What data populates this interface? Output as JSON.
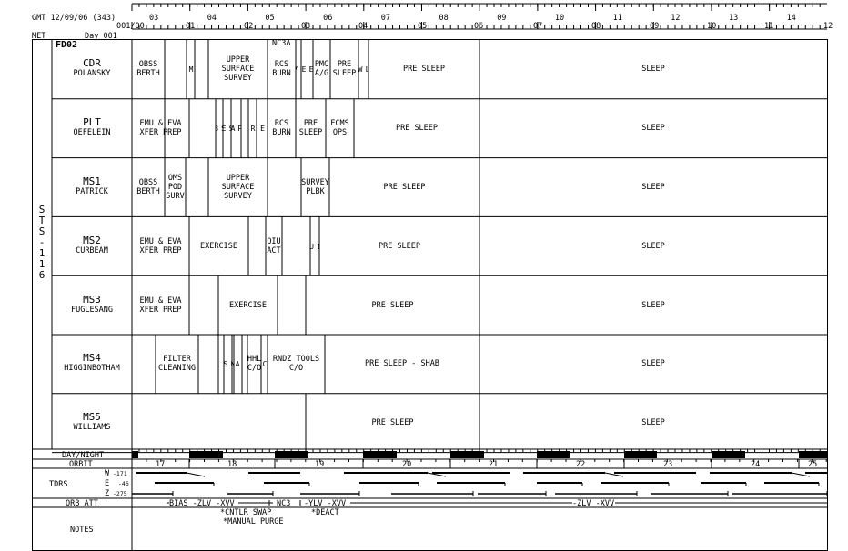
{
  "header": {
    "gmt_label": "GMT 12/09/06 (343)",
    "met_label": "MET",
    "day_label": "Day 001",
    "met_start": "001/00",
    "gmt_ticks": [
      "03",
      "04",
      "05",
      "06",
      "07",
      "08",
      "09",
      "10",
      "11",
      "12",
      "13",
      "14"
    ],
    "met_ticks": [
      "01",
      "02",
      "03",
      "04",
      "05",
      "06",
      "07",
      "08",
      "09",
      "10",
      "11",
      "12"
    ]
  },
  "flight_day": "FD02",
  "mission": "STS-116",
  "crew": [
    {
      "position": "CDR",
      "name": "POLANSKY",
      "activities": [
        {
          "label": "OBSS\nBERTH",
          "x0": 145,
          "x1": 181
        },
        {
          "label": "I\nM\nU",
          "x0": 205,
          "x1": 214,
          "vertical": true
        },
        {
          "label": "UPPER\nSURFACE\nSURVEY",
          "x0": 229,
          "x1": 294
        },
        {
          "label": "RCS\nBURN",
          "x0": 294,
          "x1": 325
        },
        {
          "label": "W\nM\nV\nR",
          "x0": 325,
          "x1": 331,
          "vertical": true
        },
        {
          "label": "S\nR\nL\nE\nE\nE\nP\nP",
          "x0": 331,
          "x1": 344,
          "vertical": true
        },
        {
          "label": "PMC\nA/G",
          "x0": 344,
          "x1": 363
        },
        {
          "label": "PRE\nSLEEP",
          "x0": 363,
          "x1": 394
        },
        {
          "label": "F\nD\nZ\nL\nW\nM\nV\nR",
          "x0": 394,
          "x1": 405,
          "vertical": true
        },
        {
          "label": "PRE SLEEP",
          "x0": 405,
          "x1": 527
        },
        {
          "label": "SLEEP",
          "x0": 527,
          "x1": 909
        }
      ]
    },
    {
      "position": "PLT",
      "name": "OEFELEIN",
      "activities": [
        {
          "label": "EMU & EVA\nXFER PREP",
          "x0": 145,
          "x1": 208
        },
        {
          "label": "W\nS\nB\n*",
          "x0": 237,
          "x1": 245,
          "vertical": true
        },
        {
          "label": "*\nS\nE\nC",
          "x0": 245,
          "x1": 254,
          "vertical": true
        },
        {
          "label": "H\nT\nR\nR\nA\nC\nF\nG",
          "x0": 254,
          "x1": 265,
          "vertical": true
        },
        {
          "label": "P\nR\nE",
          "x0": 273,
          "x1": 282,
          "vertical": true
        },
        {
          "label": "S\nL\nE\nE\nP",
          "x0": 282,
          "x1": 294,
          "vertical": true
        },
        {
          "label": "RCS\nBURN",
          "x0": 294,
          "x1": 325
        },
        {
          "label": "PRE\nSLEEP",
          "x0": 325,
          "x1": 358
        },
        {
          "label": "FCMS\nOPS",
          "x0": 358,
          "x1": 389
        },
        {
          "label": "PRE SLEEP",
          "x0": 389,
          "x1": 527
        },
        {
          "label": "SLEEP",
          "x0": 527,
          "x1": 909
        }
      ]
    },
    {
      "position": "MS1",
      "name": "PATRICK",
      "activities": [
        {
          "label": "OBSS\nBERTH",
          "x0": 145,
          "x1": 181
        },
        {
          "label": "OMS\nPOD\nSURV",
          "x0": 181,
          "x1": 204
        },
        {
          "label": "UPPER\nSURFACE\nSURVEY",
          "x0": 229,
          "x1": 294
        },
        {
          "label": "SURVEY\nPLBK",
          "x0": 331,
          "x1": 362
        },
        {
          "label": "PRE SLEEP",
          "x0": 362,
          "x1": 527
        },
        {
          "label": "SLEEP",
          "x0": 527,
          "x1": 909
        }
      ]
    },
    {
      "position": "MS2",
      "name": "CURBEAM",
      "activities": [
        {
          "label": "EMU & EVA\nXFER PREP",
          "x0": 145,
          "x1": 208
        },
        {
          "label": "EXERCISE",
          "x0": 208,
          "x1": 273
        },
        {
          "label": "OIU\nACT",
          "x0": 292,
          "x1": 310
        },
        {
          "label": "O\nI\nU\n*",
          "x0": 341,
          "x1": 351,
          "vertical": true
        },
        {
          "label": "PRE SLEEP",
          "x0": 351,
          "x1": 527
        },
        {
          "label": "SLEEP",
          "x0": 527,
          "x1": 909
        }
      ]
    },
    {
      "position": "MS3",
      "name": "FUGLESANG",
      "activities": [
        {
          "label": "EMU & EVA\nXFER PREP",
          "x0": 145,
          "x1": 208
        },
        {
          "label": "EXERCISE",
          "x0": 240,
          "x1": 305
        },
        {
          "label": "PRE SLEEP",
          "x0": 336,
          "x1": 527
        },
        {
          "label": "SLEEP",
          "x0": 527,
          "x1": 909
        }
      ]
    },
    {
      "position": "MS4",
      "name": "HIGGINBOTHAM",
      "activities": [
        {
          "label": "FILTER\nCLEANING",
          "x0": 171,
          "x1": 218
        },
        {
          "label": "T\nR\nA\nN\nS\nF\nE\nR",
          "x0": 246,
          "x1": 257,
          "vertical": true
        },
        {
          "label": "U\nP\nD\nA\nS\nT\nE",
          "x0": 255,
          "x1": 266,
          "vertical": true
        },
        {
          "label": "HHL\nC/O",
          "x0": 272,
          "x1": 287
        },
        {
          "label": "W\nC\nS",
          "x0": 287,
          "x1": 294,
          "vertical": true
        },
        {
          "label": "RNDZ TOOLS\nC/O",
          "x0": 294,
          "x1": 357
        },
        {
          "label": "PRE SLEEP - SHAB",
          "x0": 357,
          "x1": 527
        },
        {
          "label": "SLEEP",
          "x0": 527,
          "x1": 909
        }
      ]
    },
    {
      "position": "MS5",
      "name": "WILLIAMS",
      "activities": [
        {
          "label": "PRE SLEEP",
          "x0": 336,
          "x1": 527
        },
        {
          "label": "SLEEP",
          "x0": 527,
          "x1": 909
        }
      ]
    }
  ],
  "bottom": {
    "day_night_label": "DAY/NIGHT",
    "orbit_label": "ORBIT",
    "orbits": [
      "17",
      "18",
      "19",
      "20",
      "21",
      "22",
      "23",
      "24",
      "25"
    ],
    "tdrs_label": "TDRS",
    "tdrs_w": "W",
    "tdrs_e": "E",
    "tdrs_z": "Z",
    "tdrs_w_val": "-171",
    "tdrs_e_val": "-46",
    "tdrs_z_val": "-275",
    "orb_att_label": "ORB ATT",
    "att_1": "BIAS -ZLV -XVV",
    "att_2": "NC3",
    "att_3": "-YLV -XVV",
    "att_4": "-ZLV -XVV",
    "notes_label": "NOTES",
    "note_1": "*CNTLR SWAP",
    "note_2": "*MANUAL PURGE",
    "note_3": "*DEACT",
    "nc3_top": "NC3Δ"
  }
}
